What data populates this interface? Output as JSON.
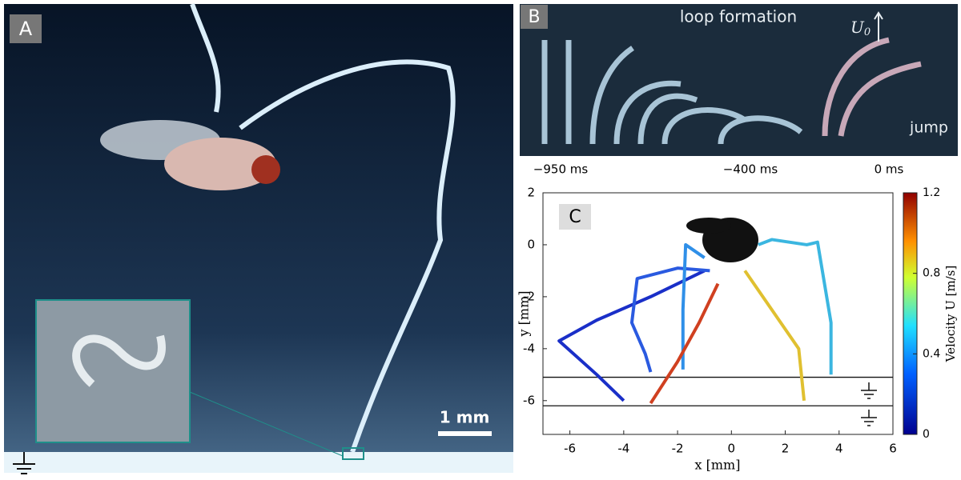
{
  "panels": [
    {
      "label": "A",
      "scale_bar": "1 mm"
    },
    {
      "label": "B",
      "title": "loop formation",
      "u0_symbol": "U",
      "u0_sub": "0",
      "jump": "jump",
      "times": [
        "−950 ms",
        "−400 ms",
        "0 ms"
      ]
    }
  ],
  "chart_data": {
    "type": "line",
    "label": "C",
    "xlabel": "x [mm]",
    "ylabel": "y [mm]",
    "xlim": [
      -7,
      6
    ],
    "ylim": [
      -7.3,
      2
    ],
    "xticks": [
      -6,
      -4,
      -2,
      0,
      2,
      4,
      6
    ],
    "yticks": [
      2,
      0,
      -2,
      -4,
      -6
    ],
    "ground_lines": [
      -5.1,
      -6.2
    ],
    "colorbar": {
      "label": "Velocity U [m/s]",
      "lim": [
        0,
        1.2
      ],
      "ticks": [
        0,
        0.4,
        0.8,
        1.2
      ]
    },
    "series": [
      {
        "color": "#1a2fc8",
        "x": [
          -1,
          -3,
          -5,
          -6.4,
          -5,
          -4
        ],
        "y": [
          -1,
          -2,
          -2.9,
          -3.7,
          -5,
          -6
        ]
      },
      {
        "color": "#2a5ae0",
        "x": [
          -0.8,
          -2,
          -3.5,
          -3.7,
          -3.2,
          -3
        ],
        "y": [
          -1,
          -0.9,
          -1.3,
          -3,
          -4.2,
          -4.9
        ]
      },
      {
        "color": "#2f8fe8",
        "x": [
          -1,
          -1.7,
          -1.8,
          -1.8
        ],
        "y": [
          -0.5,
          0,
          -2.5,
          -4.8
        ]
      },
      {
        "color": "#3bb6e0",
        "x": [
          1,
          1.5,
          2.8,
          3.2,
          3.7,
          3.7
        ],
        "y": [
          0,
          0.2,
          0,
          0.1,
          -3,
          -5
        ]
      },
      {
        "color": "#e0c030",
        "x": [
          0.5,
          1.5,
          2.5,
          2.7
        ],
        "y": [
          -1,
          -2.5,
          -4,
          -6
        ]
      },
      {
        "color": "#d04020",
        "x": [
          -0.5,
          -1.2,
          -2,
          -3
        ],
        "y": [
          -1.5,
          -3,
          -4.5,
          -6.1
        ]
      }
    ]
  }
}
